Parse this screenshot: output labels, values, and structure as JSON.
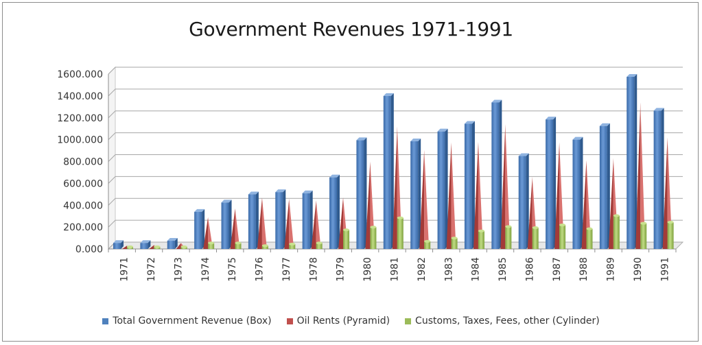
{
  "chart_data": {
    "type": "bar",
    "title": "Government Revenues 1971-1991",
    "xlabel": "",
    "ylabel": "",
    "ylim": [
      0,
      1600
    ],
    "yticks": [
      "0.000",
      "200.000",
      "400.000",
      "600.000",
      "800.000",
      "1000.000",
      "1200.000",
      "1400.000",
      "1600.000"
    ],
    "grid": true,
    "legend_position": "bottom",
    "categories": [
      "1971",
      "1972",
      "1973",
      "1974",
      "1975",
      "1976",
      "1977",
      "1978",
      "1979",
      "1980",
      "1981",
      "1982",
      "1983",
      "1984",
      "1985",
      "1986",
      "1987",
      "1988",
      "1989",
      "1990",
      "1991"
    ],
    "series": [
      {
        "name": "Total Government Revenue (Box)",
        "color": "#4f81bd",
        "shape": "box",
        "values": [
          55,
          55,
          75,
          340,
          425,
          500,
          520,
          510,
          655,
          995,
          1400,
          985,
          1075,
          1145,
          1340,
          850,
          1185,
          1000,
          1125,
          1575,
          1265
        ]
      },
      {
        "name": "Oil Rents (Pyramid)",
        "color": "#c0504d",
        "shape": "pyramid",
        "values": [
          30,
          35,
          55,
          290,
          370,
          470,
          460,
          445,
          470,
          800,
          1120,
          905,
          975,
          980,
          1140,
          660,
          975,
          810,
          830,
          1340,
          1020
        ]
      },
      {
        "name": "Customs, Taxes, Fees, other (Cylinder)",
        "color": "#9bbb59",
        "shape": "cylinder",
        "values": [
          20,
          20,
          20,
          55,
          55,
          30,
          45,
          55,
          175,
          200,
          285,
          70,
          100,
          165,
          205,
          195,
          220,
          185,
          305,
          235,
          245
        ]
      }
    ]
  }
}
